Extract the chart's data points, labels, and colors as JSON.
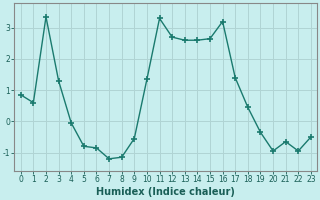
{
  "x": [
    0,
    1,
    2,
    3,
    4,
    5,
    6,
    7,
    8,
    9,
    10,
    11,
    12,
    13,
    14,
    15,
    16,
    17,
    18,
    19,
    20,
    21,
    22,
    23
  ],
  "y": [
    0.85,
    0.6,
    3.35,
    1.3,
    -0.05,
    -0.8,
    -0.85,
    -1.2,
    -1.15,
    -0.55,
    1.35,
    3.3,
    2.7,
    2.6,
    2.6,
    2.65,
    3.2,
    1.4,
    0.45,
    -0.35,
    -0.95,
    -0.65,
    -0.95,
    -0.5
  ],
  "line_color": "#1a7a6e",
  "marker": "+",
  "marker_size": 4,
  "linewidth": 1.0,
  "xlabel": "Humidex (Indice chaleur)",
  "xlabel_fontsize": 7,
  "xlabel_color": "#1a5f57",
  "bg_color": "#c8eeee",
  "grid_color": "#b0d4d4",
  "spine_color": "#888888",
  "tick_color": "#1a5f57",
  "tick_fontsize": 5.5,
  "yticks": [
    -1,
    0,
    1,
    2,
    3
  ],
  "xlim": [
    -0.5,
    23.5
  ],
  "ylim": [
    -1.6,
    3.8
  ]
}
